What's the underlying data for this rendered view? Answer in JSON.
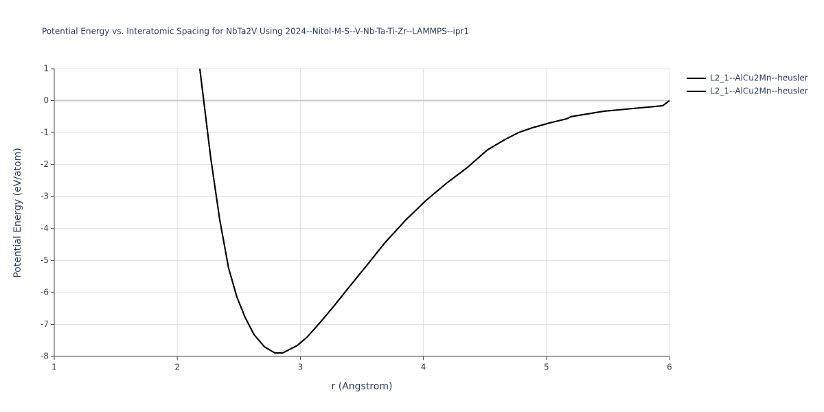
{
  "chart_data": {
    "type": "line",
    "title": "Potential Energy vs. Interatomic Spacing for NbTa2V Using 2024--Nitol-M-S--V-Nb-Ta-Ti-Zr--LAMMPS--ipr1",
    "x_label": "r (Angstrom)",
    "y_label": "Potential Energy (eV/atom)",
    "x": [
      2.183,
      2.272,
      2.345,
      2.417,
      2.484,
      2.551,
      2.624,
      2.708,
      2.791,
      2.858,
      2.975,
      3.054,
      3.154,
      3.266,
      3.405,
      3.545,
      3.684,
      3.852,
      4.019,
      4.186,
      4.354,
      4.521,
      4.661,
      4.772,
      4.884,
      5.023,
      5.163,
      5.2,
      5.47,
      5.693,
      5.944,
      6.0
    ],
    "series": [
      {
        "name": "L2_1--AlCu2Mn--heusler",
        "color": "#000000",
        "values": [
          1.0,
          -1.8,
          -3.73,
          -5.24,
          -6.14,
          -6.78,
          -7.32,
          -7.7,
          -7.89,
          -7.89,
          -7.66,
          -7.4,
          -6.97,
          -6.46,
          -5.79,
          -5.13,
          -4.46,
          -3.75,
          -3.13,
          -2.59,
          -2.1,
          -1.54,
          -1.22,
          -1.0,
          -0.85,
          -0.7,
          -0.57,
          -0.5,
          -0.33,
          -0.25,
          -0.16,
          0.0
        ]
      },
      {
        "name": "L2_1--AlCu2Mn--heusler",
        "color": "#000000",
        "values": [
          1.0,
          -1.8,
          -3.73,
          -5.24,
          -6.14,
          -6.78,
          -7.32,
          -7.7,
          -7.89,
          -7.89,
          -7.66,
          -7.4,
          -6.97,
          -6.46,
          -5.79,
          -5.13,
          -4.46,
          -3.75,
          -3.13,
          -2.59,
          -2.1,
          -1.54,
          -1.22,
          -1.0,
          -0.85,
          -0.7,
          -0.57,
          -0.5,
          -0.33,
          -0.25,
          -0.16,
          0.0
        ]
      }
    ],
    "xlim": [
      1,
      6
    ],
    "xticks": [
      1,
      2,
      3,
      4,
      5,
      6
    ],
    "ylim": [
      -8,
      1
    ],
    "yticks": [
      1,
      0,
      -1,
      -2,
      -3,
      -4,
      -5,
      -6,
      -7,
      -8
    ],
    "grid": true,
    "legend": "outside-right"
  }
}
